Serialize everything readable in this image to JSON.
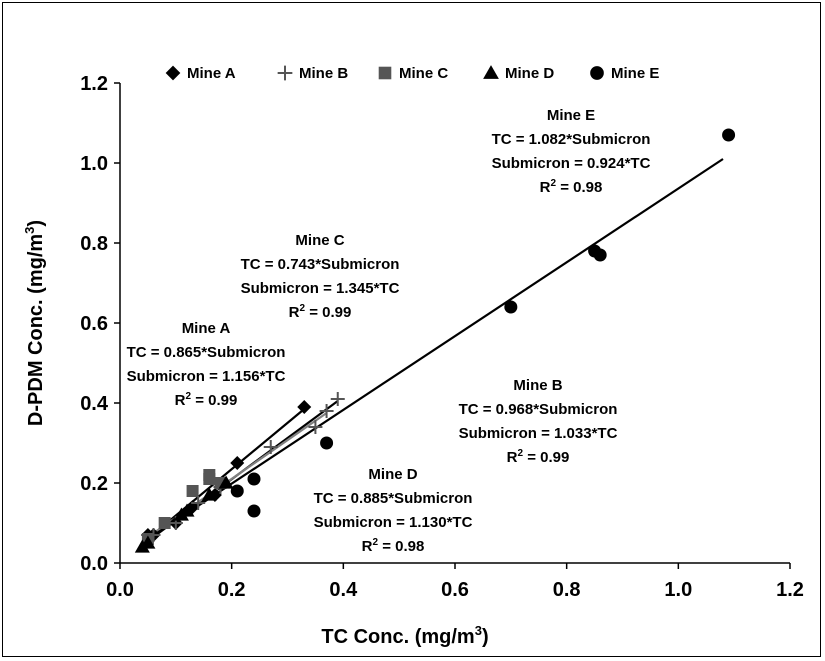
{
  "chart_data": {
    "type": "scatter",
    "xlabel": "TC Conc. (mg/m",
    "xlabel_sup": "3",
    "xlabel_end": ")",
    "ylabel": "D-PDM Conc. (mg/m",
    "ylabel_sup": "3",
    "ylabel_end": ")",
    "xlim": [
      0.0,
      1.2
    ],
    "ylim": [
      0.0,
      1.2
    ],
    "xticks": [
      "0.0",
      "0.2",
      "0.4",
      "0.6",
      "0.8",
      "1.0",
      "1.2"
    ],
    "yticks": [
      "0.0",
      "0.2",
      "0.4",
      "0.6",
      "0.8",
      "1.0",
      "1.2"
    ],
    "grid": false,
    "legend_position": "top",
    "series": [
      {
        "name": "Mine A",
        "marker": "diamond",
        "color": "#000000",
        "line_color": "#000000",
        "points": [
          [
            0.05,
            0.07
          ],
          [
            0.06,
            0.07
          ],
          [
            0.1,
            0.1
          ],
          [
            0.13,
            0.14
          ],
          [
            0.17,
            0.17
          ],
          [
            0.21,
            0.25
          ],
          [
            0.33,
            0.39
          ]
        ],
        "fit": [
          [
            0.045,
            0.055
          ],
          [
            0.33,
            0.385
          ]
        ]
      },
      {
        "name": "Mine B",
        "marker": "plus",
        "color": "#555555",
        "line_color": "#000000",
        "points": [
          [
            0.06,
            0.07
          ],
          [
            0.1,
            0.1
          ],
          [
            0.14,
            0.15
          ],
          [
            0.18,
            0.19
          ],
          [
            0.27,
            0.29
          ],
          [
            0.35,
            0.34
          ],
          [
            0.37,
            0.38
          ],
          [
            0.39,
            0.41
          ]
        ],
        "fit": [
          [
            0.05,
            0.055
          ],
          [
            0.39,
            0.405
          ]
        ]
      },
      {
        "name": "Mine C",
        "marker": "square",
        "color": "#555555",
        "line_color": "#808080",
        "points": [
          [
            0.05,
            0.06
          ],
          [
            0.08,
            0.1
          ],
          [
            0.13,
            0.18
          ],
          [
            0.16,
            0.22
          ],
          [
            0.16,
            0.21
          ],
          [
            0.18,
            0.2
          ]
        ],
        "fit": [
          [
            0.045,
            0.06
          ],
          [
            0.37,
            0.375
          ]
        ]
      },
      {
        "name": "Mine D",
        "marker": "triangle",
        "color": "#000000",
        "line_color": "#000000",
        "points": [
          [
            0.04,
            0.04
          ],
          [
            0.05,
            0.05
          ],
          [
            0.11,
            0.12
          ],
          [
            0.12,
            0.13
          ],
          [
            0.16,
            0.17
          ],
          [
            0.19,
            0.2
          ]
        ],
        "fit": []
      },
      {
        "name": "Mine E",
        "marker": "circle",
        "color": "#000000",
        "line_color": "#000000",
        "points": [
          [
            0.21,
            0.18
          ],
          [
            0.24,
            0.21
          ],
          [
            0.24,
            0.13
          ],
          [
            0.37,
            0.3
          ],
          [
            0.7,
            0.64
          ],
          [
            0.85,
            0.78
          ],
          [
            0.86,
            0.77
          ],
          [
            1.09,
            1.07
          ]
        ],
        "fit": [
          [
            0.05,
            0.06
          ],
          [
            1.08,
            1.01
          ]
        ]
      }
    ],
    "annotations": [
      {
        "id": "mine-e",
        "title": "Mine E",
        "eq1": "TC = 1.082*Submicron",
        "eq2": "Submicron = 0.924*TC",
        "r2_prefix": "R",
        "r2_sup": "2",
        "r2_rest": " = 0.98"
      },
      {
        "id": "mine-c",
        "title": "Mine C",
        "eq1": "TC = 0.743*Submicron",
        "eq2": "Submicron = 1.345*TC",
        "r2_prefix": "R",
        "r2_sup": "2",
        "r2_rest": " = 0.99"
      },
      {
        "id": "mine-a",
        "title": "Mine A",
        "eq1": "TC = 0.865*Submicron",
        "eq2": "Submicron = 1.156*TC",
        "r2_prefix": "R",
        "r2_sup": "2",
        "r2_rest": " = 0.99"
      },
      {
        "id": "mine-b",
        "title": "Mine B",
        "eq1": "TC = 0.968*Submicron",
        "eq2": "Submicron = 1.033*TC",
        "r2_prefix": "R",
        "r2_sup": "2",
        "r2_rest": " = 0.99"
      },
      {
        "id": "mine-d",
        "title": "Mine D",
        "eq1": "TC = 0.885*Submicron",
        "eq2": "Submicron = 1.130*TC",
        "r2_prefix": "R",
        "r2_sup": "2",
        "r2_rest": " = 0.98"
      }
    ]
  }
}
